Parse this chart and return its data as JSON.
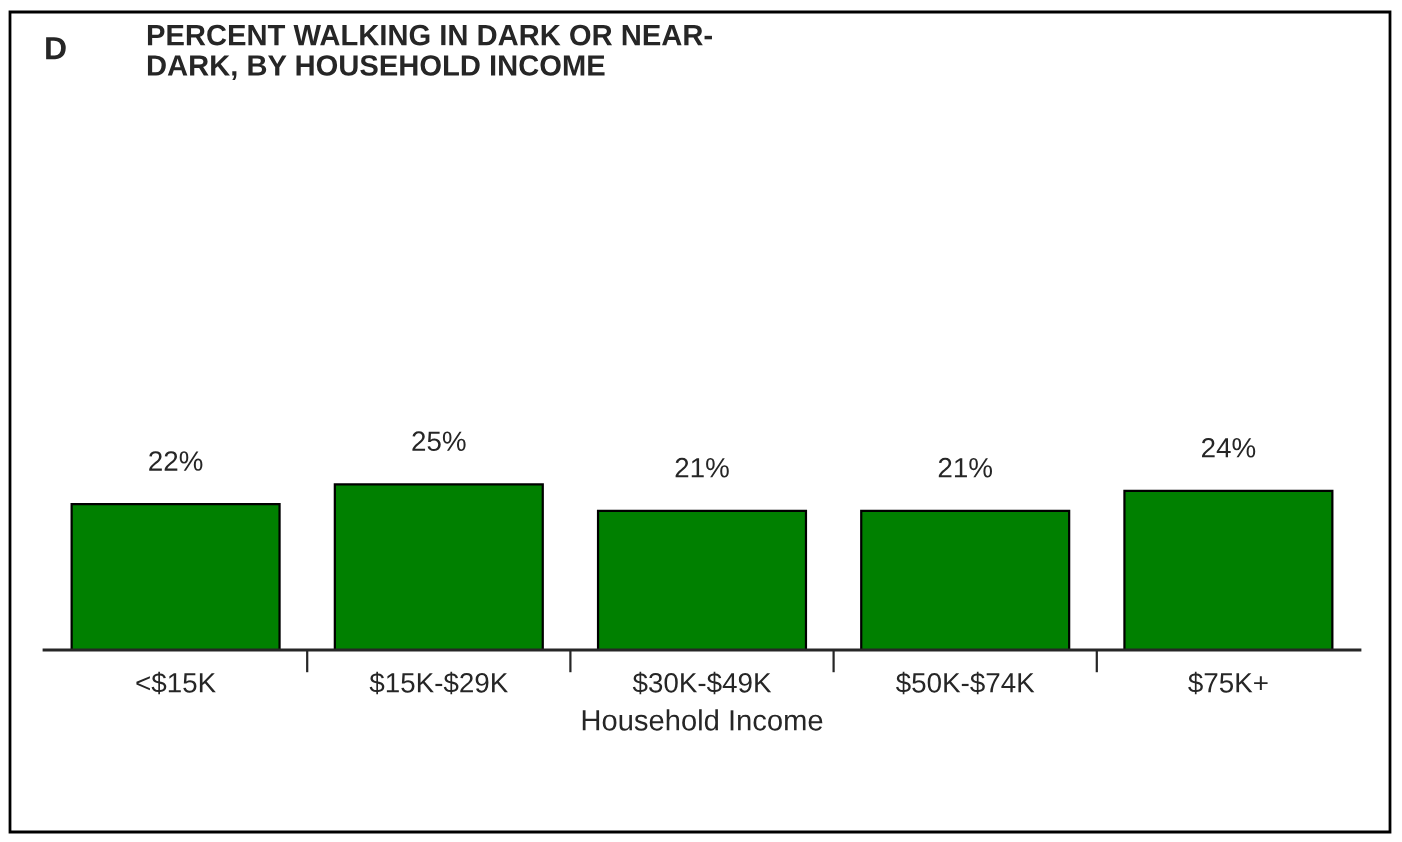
{
  "chart_data": {
    "type": "bar",
    "title": "PERCENT WALKING IN DARK OR NEAR-\nDARK, BY HOUSEHOLD INCOME",
    "annotations": [
      "D"
    ],
    "xlabel": "Household Income",
    "categories": [
      "<$15K",
      "$15K-$29K",
      "$30K-$49K",
      "$50K-$74K",
      "$75K+"
    ],
    "values": [
      22,
      25,
      21,
      21,
      24
    ],
    "value_labels": [
      "22%",
      "25%",
      "21%",
      "21%",
      "24%"
    ],
    "color": "#008000",
    "tick_labels": "x",
    "grid": false,
    "legend": false
  }
}
